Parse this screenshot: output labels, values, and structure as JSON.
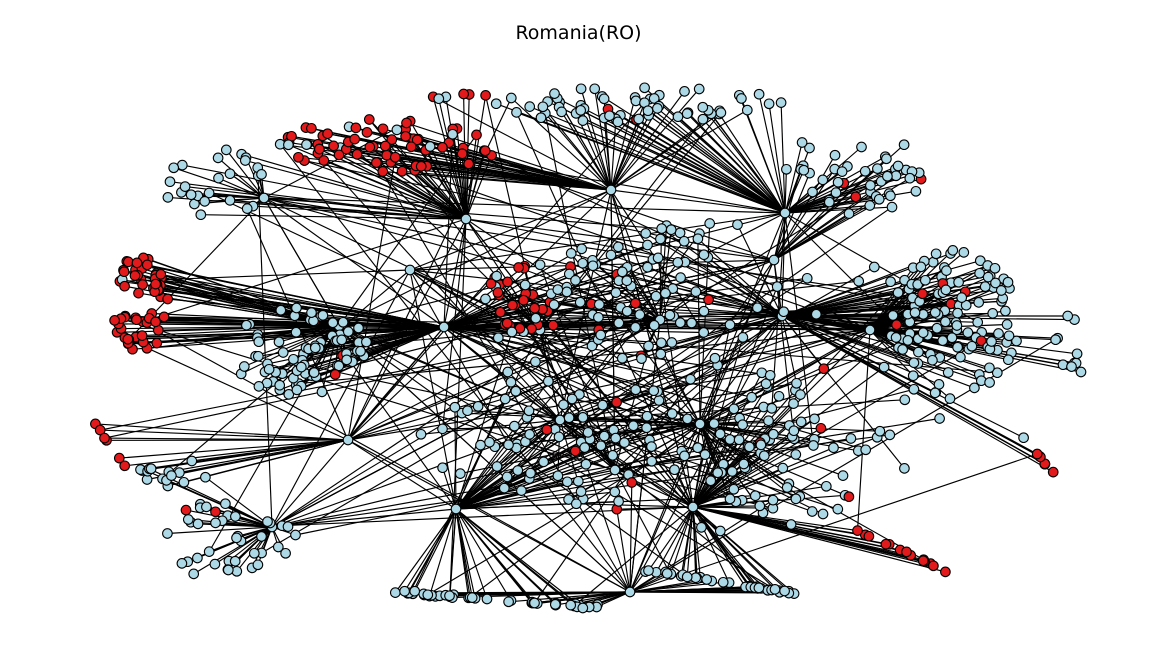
{
  "title": "Romania(RO)",
  "colors": {
    "default_node": "#add8e6",
    "highlighted_node": "#e31a1c",
    "edge": "#000000",
    "node_outline": "#000000",
    "background": "#ffffff"
  }
}
